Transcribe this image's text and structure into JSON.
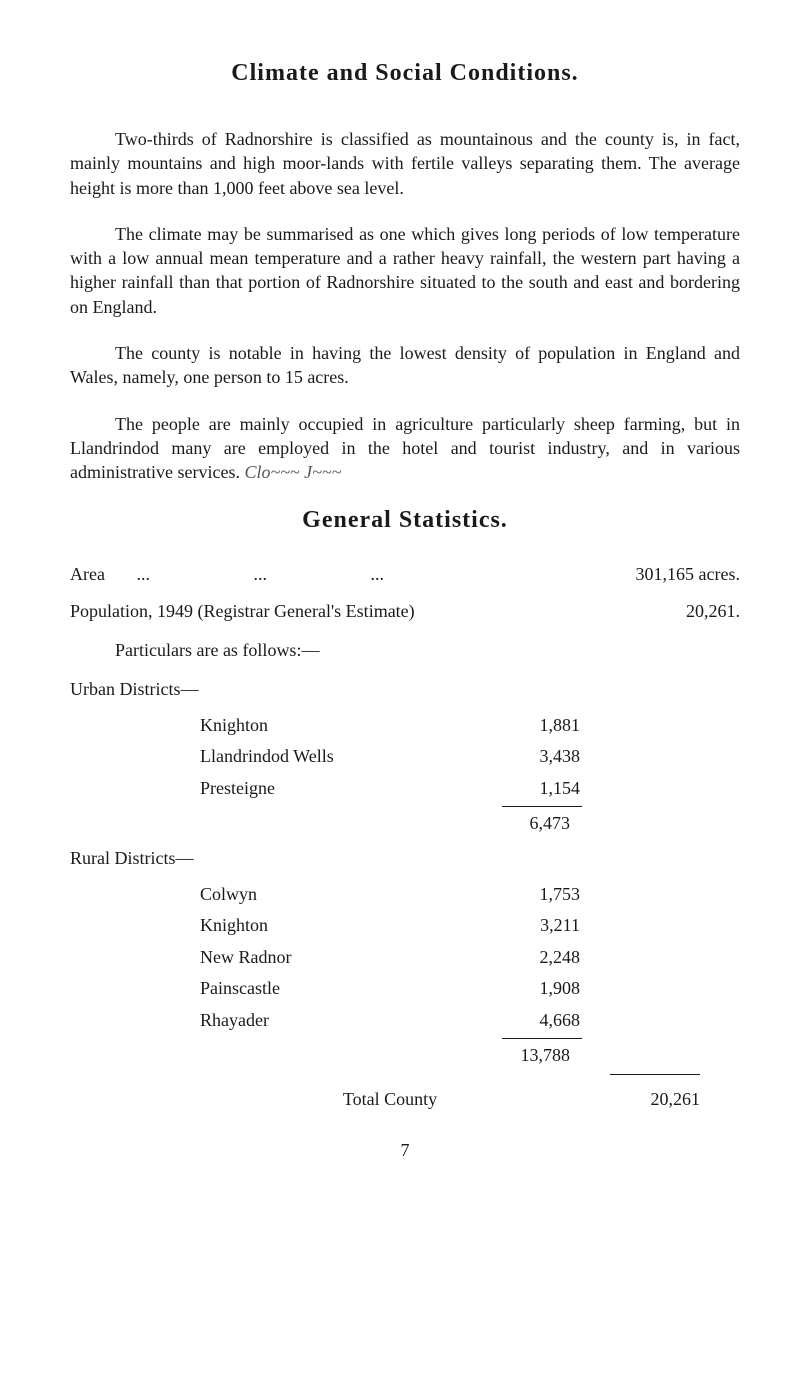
{
  "page": {
    "background_color": "#ffffff",
    "text_color": "#1a1a1a",
    "font_family": "Century Schoolbook, Georgia, serif",
    "body_fontsize": 18,
    "title_fontsize": 24
  },
  "title": "Climate and Social Conditions.",
  "paragraphs": {
    "p1": "Two-thirds of Radnorshire is classified as mountainous and the county is, in fact, mainly mountains and high moor-lands with fertile valleys separating them. The average height is more than 1,000 feet above sea level.",
    "p2": "The climate may be summarised as one which gives long periods of low temperature with a low annual mean temperature and a rather heavy rainfall, the western part having a higher rainfall than that portion of Radnorshire situated to the south and east and bordering on England.",
    "p3": "The county is notable in having the lowest density of population in England and Wales, namely, one person to 15 acres.",
    "p4_text": "The people are mainly occupied in agriculture particularly sheep farming, but in Llandrindod many are employed in the hotel and tourist industry, and in various administrative services.",
    "p4_handwriting": "Clo~~~  J~~~"
  },
  "section_title": "General Statistics.",
  "stats": {
    "area_label": "Area       ...                       ...                       ...",
    "area_value": "301,165 acres.",
    "population_label": "Population, 1949 (Registrar General's Estimate)",
    "population_value": "20,261.",
    "particulars_intro": "Particulars are as follows:—"
  },
  "districts": {
    "urban": {
      "header": "Urban Districts—",
      "rows": [
        {
          "label": "Knighton",
          "value": "1,881"
        },
        {
          "label": "Llandrindod Wells",
          "value": "3,438"
        },
        {
          "label": "Presteigne",
          "value": "1,154"
        }
      ],
      "subtotal": "6,473"
    },
    "rural": {
      "header": "Rural Districts—",
      "rows": [
        {
          "label": "Colwyn",
          "value": "1,753"
        },
        {
          "label": "Knighton",
          "value": "3,211"
        },
        {
          "label": "New Radnor",
          "value": "2,248"
        },
        {
          "label": "Painscastle",
          "value": "1,908"
        },
        {
          "label": "Rhayader",
          "value": "4,668"
        }
      ],
      "subtotal": "13,788"
    },
    "total_label": "Total County",
    "total_value": "20,261"
  },
  "page_number": "7"
}
